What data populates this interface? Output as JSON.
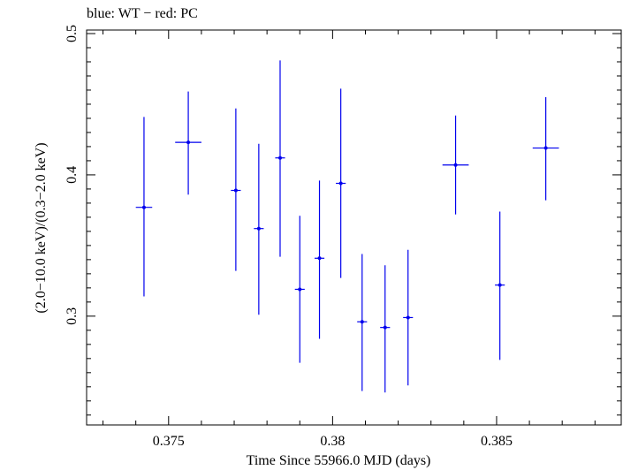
{
  "chart_data": {
    "type": "scatter",
    "title": "blue: WT − red: PC",
    "xlabel": "Time Since 55966.0 MJD (days)",
    "ylabel": "(2.0−10.0 keV)/(0.3−2.0 keV)",
    "xlim": [
      0.3725,
      0.3888
    ],
    "ylim": [
      0.223,
      0.5025
    ],
    "x_ticks": [
      0.375,
      0.38,
      0.385
    ],
    "x_tick_labels": [
      "0.375",
      "0.38",
      "0.385"
    ],
    "y_ticks": [
      0.3,
      0.4,
      0.5
    ],
    "y_tick_labels": [
      "0.3",
      "0.4",
      "0.5"
    ],
    "grid": false,
    "colors": {
      "WT": "#0000ee",
      "axes": "#000000"
    },
    "series": [
      {
        "name": "WT",
        "points": [
          {
            "x": 0.37425,
            "xerr": 0.00025,
            "y": 0.377,
            "ylo": 0.314,
            "yhi": 0.441
          },
          {
            "x": 0.3756,
            "xerr": 0.0004,
            "y": 0.423,
            "ylo": 0.386,
            "yhi": 0.459
          },
          {
            "x": 0.37705,
            "xerr": 0.00015,
            "y": 0.389,
            "ylo": 0.332,
            "yhi": 0.447
          },
          {
            "x": 0.37775,
            "xerr": 0.00015,
            "y": 0.362,
            "ylo": 0.301,
            "yhi": 0.422
          },
          {
            "x": 0.3784,
            "xerr": 0.00015,
            "y": 0.412,
            "ylo": 0.342,
            "yhi": 0.481
          },
          {
            "x": 0.379,
            "xerr": 0.00015,
            "y": 0.319,
            "ylo": 0.267,
            "yhi": 0.371
          },
          {
            "x": 0.3796,
            "xerr": 0.00015,
            "y": 0.341,
            "ylo": 0.284,
            "yhi": 0.396
          },
          {
            "x": 0.38025,
            "xerr": 0.00015,
            "y": 0.394,
            "ylo": 0.327,
            "yhi": 0.461
          },
          {
            "x": 0.3809,
            "xerr": 0.00015,
            "y": 0.296,
            "ylo": 0.247,
            "yhi": 0.344
          },
          {
            "x": 0.3816,
            "xerr": 0.00015,
            "y": 0.292,
            "ylo": 0.246,
            "yhi": 0.336
          },
          {
            "x": 0.3823,
            "xerr": 0.00015,
            "y": 0.299,
            "ylo": 0.251,
            "yhi": 0.347
          },
          {
            "x": 0.38375,
            "xerr": 0.0004,
            "y": 0.407,
            "ylo": 0.372,
            "yhi": 0.442
          },
          {
            "x": 0.3851,
            "xerr": 0.00015,
            "y": 0.322,
            "ylo": 0.269,
            "yhi": 0.374
          },
          {
            "x": 0.3865,
            "xerr": 0.0004,
            "y": 0.419,
            "ylo": 0.382,
            "yhi": 0.455
          }
        ]
      }
    ]
  }
}
